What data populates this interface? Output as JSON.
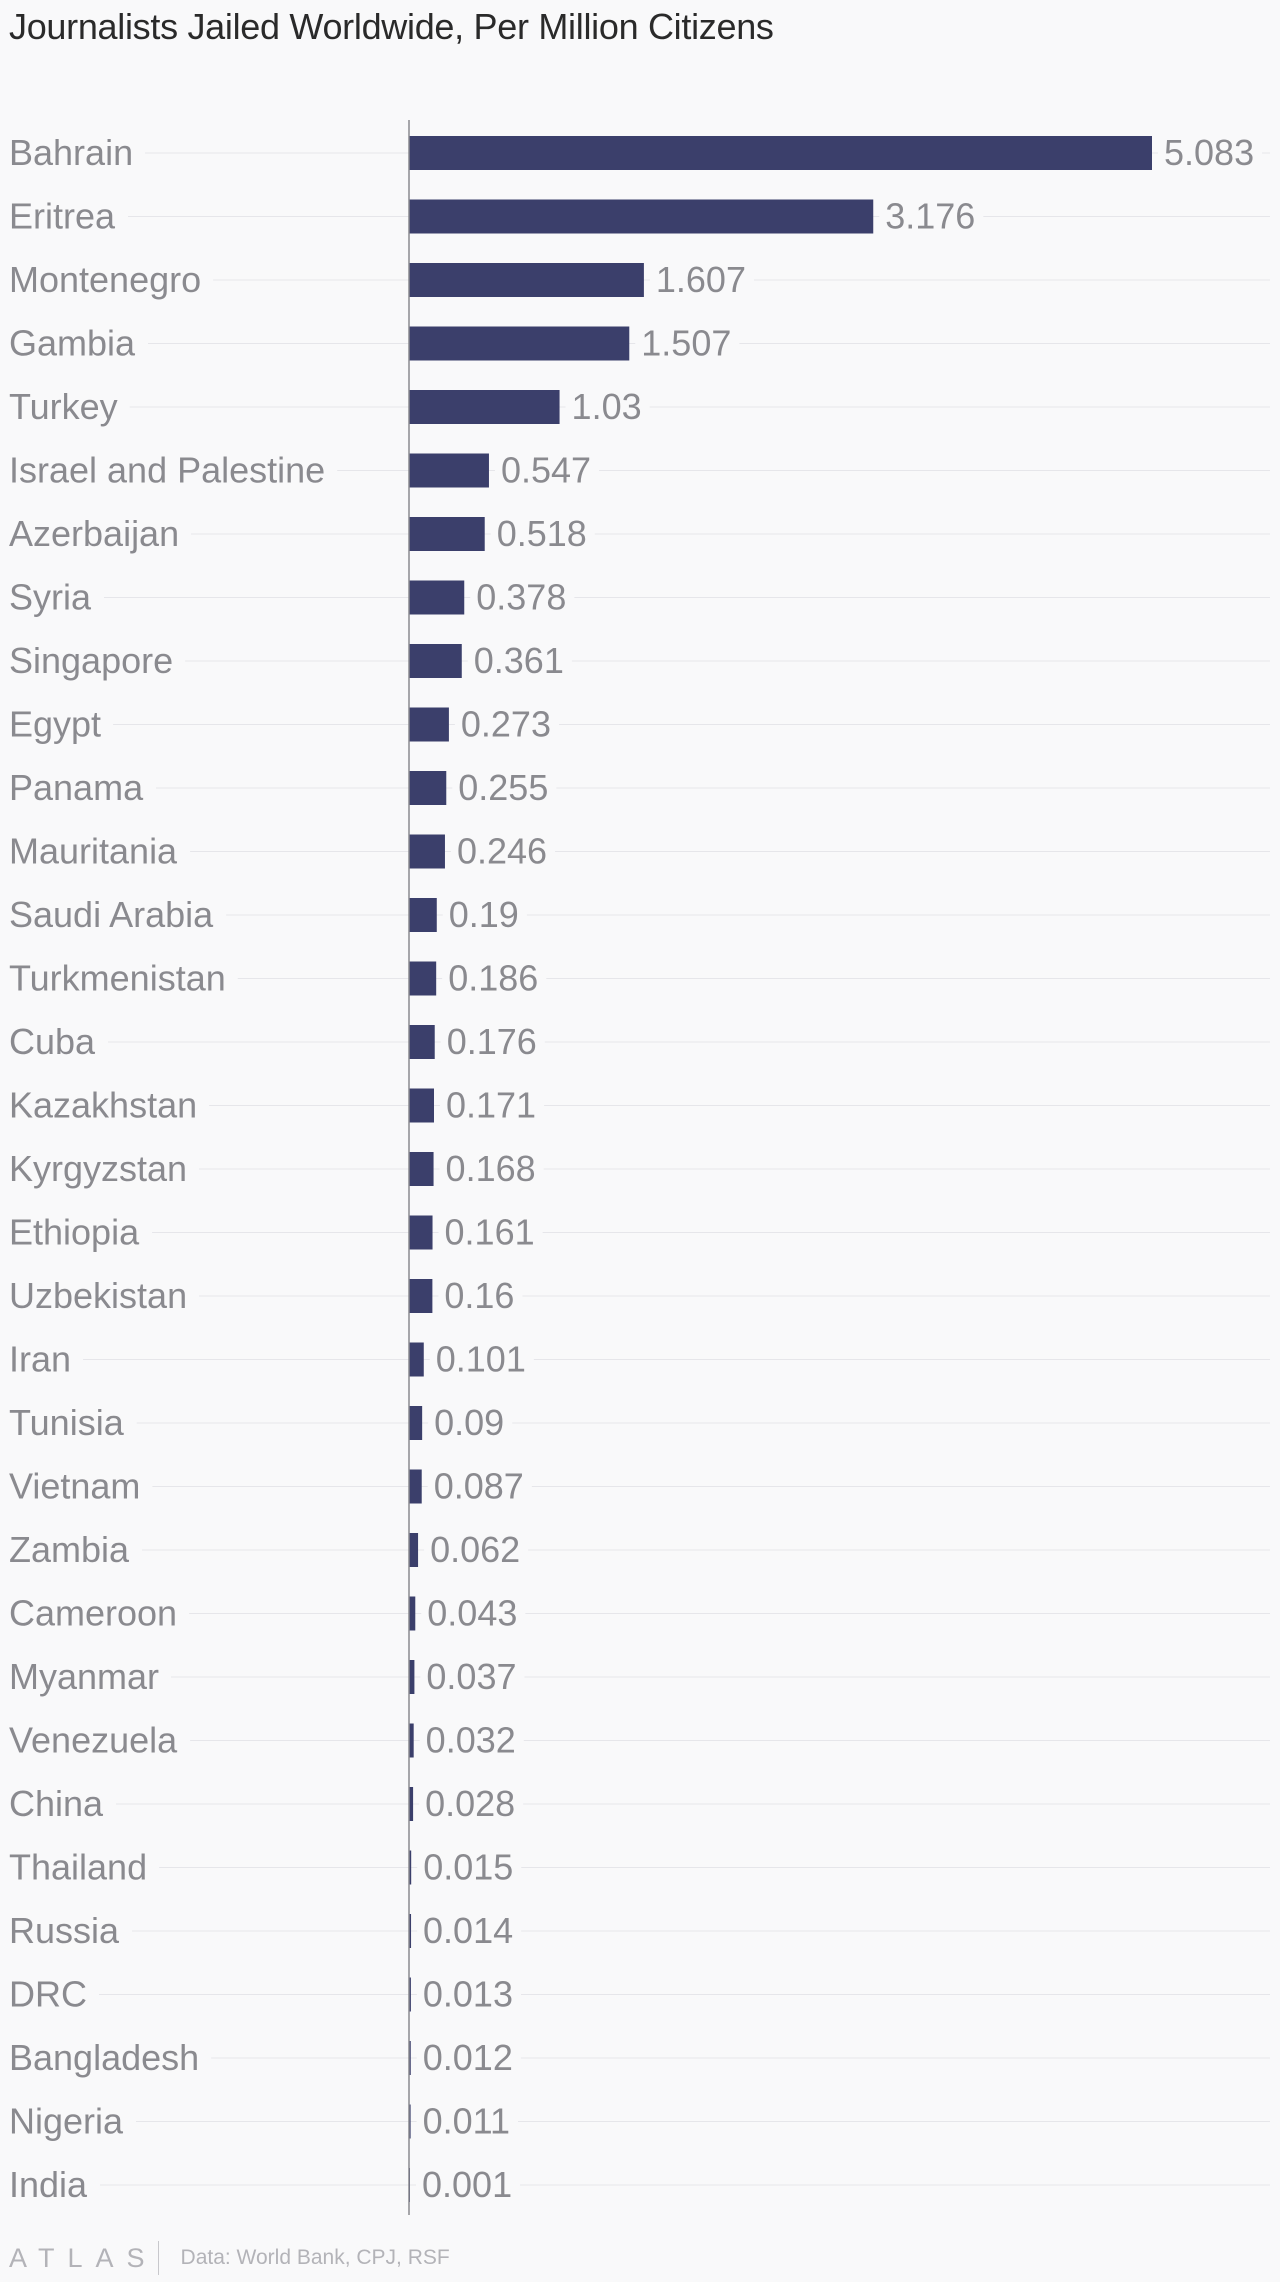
{
  "chart_data": {
    "type": "bar",
    "orientation": "horizontal",
    "title": "Journalists Jailed Worldwide, Per Million Citizens",
    "categories": [
      "Bahrain",
      "Eritrea",
      "Montenegro",
      "Gambia",
      "Turkey",
      "Israel and Palestine",
      "Azerbaijan",
      "Syria",
      "Singapore",
      "Egypt",
      "Panama",
      "Mauritania",
      "Saudi Arabia",
      "Turkmenistan",
      "Cuba",
      "Kazakhstan",
      "Kyrgyzstan",
      "Ethiopia",
      "Uzbekistan",
      "Iran",
      "Tunisia",
      "Vietnam",
      "Zambia",
      "Cameroon",
      "Myanmar",
      "Venezuela",
      "China",
      "Thailand",
      "Russia",
      "DRC",
      "Bangladesh",
      "Nigeria",
      "India"
    ],
    "values": [
      5.083,
      3.176,
      1.607,
      1.507,
      1.03,
      0.547,
      0.518,
      0.378,
      0.361,
      0.273,
      0.255,
      0.246,
      0.19,
      0.186,
      0.176,
      0.171,
      0.168,
      0.161,
      0.16,
      0.101,
      0.09,
      0.087,
      0.062,
      0.043,
      0.037,
      0.032,
      0.028,
      0.015,
      0.014,
      0.013,
      0.012,
      0.011,
      0.001
    ],
    "value_labels": [
      "5.083",
      "3.176",
      "1.607",
      "1.507",
      "1.03",
      "0.547",
      "0.518",
      "0.378",
      "0.361",
      "0.273",
      "0.255",
      "0.246",
      "0.19",
      "0.186",
      "0.176",
      "0.171",
      "0.168",
      "0.161",
      "0.16",
      "0.101",
      "0.09",
      "0.087",
      "0.062",
      "0.043",
      "0.037",
      "0.032",
      "0.028",
      "0.015",
      "0.014",
      "0.013",
      "0.012",
      "0.011",
      "0.001"
    ],
    "xlim": [
      0,
      5.083
    ],
    "grid": true,
    "legend": "none",
    "bar_color": "#3b3f6b"
  },
  "footer": {
    "brand": "ATLAS",
    "source": "Data: World Bank, CPJ, RSF"
  }
}
